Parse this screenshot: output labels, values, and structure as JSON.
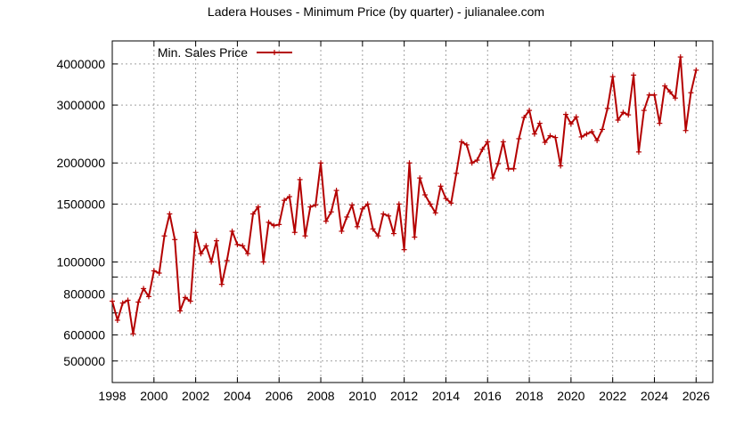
{
  "chart_data": {
    "type": "line",
    "title": "Ladera Houses - Minimum Price (by quarter) - julianalee.com",
    "xlabel": "",
    "ylabel": "",
    "y_scale": "log",
    "xlim": [
      1998,
      2026.8
    ],
    "ylim": [
      430000,
      4700000
    ],
    "grid": true,
    "legend_position": "top-left",
    "color": "#b40000",
    "x_ticks": [
      {
        "value": 1998,
        "label": "1998"
      },
      {
        "value": 2000,
        "label": "2000"
      },
      {
        "value": 2002,
        "label": "2002"
      },
      {
        "value": 2004,
        "label": "2004"
      },
      {
        "value": 2006,
        "label": "2006"
      },
      {
        "value": 2008,
        "label": "2008"
      },
      {
        "value": 2010,
        "label": "2010"
      },
      {
        "value": 2012,
        "label": "2012"
      },
      {
        "value": 2014,
        "label": "2014"
      },
      {
        "value": 2016,
        "label": "2016"
      },
      {
        "value": 2018,
        "label": "2018"
      },
      {
        "value": 2020,
        "label": "2020"
      },
      {
        "value": 2022,
        "label": "2022"
      },
      {
        "value": 2024,
        "label": "2024"
      },
      {
        "value": 2026,
        "label": "2026"
      }
    ],
    "y_ticks": [
      {
        "value": 500000,
        "label": "500000"
      },
      {
        "value": 600000,
        "label": "600000"
      },
      {
        "value": 700000,
        "label": ""
      },
      {
        "value": 800000,
        "label": "800000"
      },
      {
        "value": 900000,
        "label": ""
      },
      {
        "value": 1000000,
        "label": "1000000"
      },
      {
        "value": 1500000,
        "label": "1500000"
      },
      {
        "value": 2000000,
        "label": "2000000"
      },
      {
        "value": 3000000,
        "label": "3000000"
      },
      {
        "value": 4000000,
        "label": "4000000"
      }
    ],
    "series": [
      {
        "name": "Min. Sales Price",
        "points": [
          [
            1998.0,
            760000
          ],
          [
            1998.25,
            665000
          ],
          [
            1998.5,
            750000
          ],
          [
            1998.75,
            765000
          ],
          [
            1999.0,
            605000
          ],
          [
            1999.25,
            755000
          ],
          [
            1999.5,
            830000
          ],
          [
            1999.75,
            785000
          ],
          [
            2000.0,
            940000
          ],
          [
            2000.25,
            925000
          ],
          [
            2000.5,
            1200000
          ],
          [
            2000.75,
            1400000
          ],
          [
            2001.0,
            1170000
          ],
          [
            2001.25,
            710000
          ],
          [
            2001.5,
            780000
          ],
          [
            2001.75,
            760000
          ],
          [
            2002.0,
            1230000
          ],
          [
            2002.25,
            1060000
          ],
          [
            2002.5,
            1120000
          ],
          [
            2002.75,
            1000000
          ],
          [
            2003.0,
            1160000
          ],
          [
            2003.25,
            855000
          ],
          [
            2003.5,
            1010000
          ],
          [
            2003.75,
            1240000
          ],
          [
            2004.0,
            1130000
          ],
          [
            2004.25,
            1120000
          ],
          [
            2004.5,
            1060000
          ],
          [
            2004.75,
            1400000
          ],
          [
            2005.0,
            1470000
          ],
          [
            2005.25,
            1000000
          ],
          [
            2005.5,
            1320000
          ],
          [
            2005.75,
            1290000
          ],
          [
            2006.0,
            1300000
          ],
          [
            2006.25,
            1540000
          ],
          [
            2006.5,
            1580000
          ],
          [
            2006.75,
            1230000
          ],
          [
            2007.0,
            1780000
          ],
          [
            2007.25,
            1200000
          ],
          [
            2007.5,
            1470000
          ],
          [
            2007.75,
            1490000
          ],
          [
            2008.0,
            2000000
          ],
          [
            2008.25,
            1330000
          ],
          [
            2008.5,
            1420000
          ],
          [
            2008.75,
            1650000
          ],
          [
            2009.0,
            1240000
          ],
          [
            2009.25,
            1370000
          ],
          [
            2009.5,
            1490000
          ],
          [
            2009.75,
            1280000
          ],
          [
            2010.0,
            1450000
          ],
          [
            2010.25,
            1500000
          ],
          [
            2010.5,
            1260000
          ],
          [
            2010.75,
            1200000
          ],
          [
            2011.0,
            1400000
          ],
          [
            2011.25,
            1380000
          ],
          [
            2011.5,
            1220000
          ],
          [
            2011.75,
            1500000
          ],
          [
            2012.0,
            1090000
          ],
          [
            2012.25,
            2000000
          ],
          [
            2012.5,
            1190000
          ],
          [
            2012.75,
            1800000
          ],
          [
            2013.0,
            1600000
          ],
          [
            2013.25,
            1500000
          ],
          [
            2013.5,
            1410000
          ],
          [
            2013.75,
            1700000
          ],
          [
            2014.0,
            1560000
          ],
          [
            2014.25,
            1510000
          ],
          [
            2014.5,
            1860000
          ],
          [
            2014.75,
            2320000
          ],
          [
            2015.0,
            2270000
          ],
          [
            2015.25,
            2000000
          ],
          [
            2015.5,
            2040000
          ],
          [
            2015.75,
            2200000
          ],
          [
            2016.0,
            2320000
          ],
          [
            2016.25,
            1800000
          ],
          [
            2016.5,
            1990000
          ],
          [
            2016.75,
            2320000
          ],
          [
            2017.0,
            1920000
          ],
          [
            2017.25,
            1920000
          ],
          [
            2017.5,
            2370000
          ],
          [
            2017.75,
            2750000
          ],
          [
            2018.0,
            2890000
          ],
          [
            2018.25,
            2450000
          ],
          [
            2018.5,
            2640000
          ],
          [
            2018.75,
            2310000
          ],
          [
            2019.0,
            2420000
          ],
          [
            2019.25,
            2390000
          ],
          [
            2019.5,
            1960000
          ],
          [
            2019.75,
            2810000
          ],
          [
            2020.0,
            2630000
          ],
          [
            2020.25,
            2760000
          ],
          [
            2020.5,
            2400000
          ],
          [
            2020.75,
            2450000
          ],
          [
            2021.0,
            2490000
          ],
          [
            2021.25,
            2340000
          ],
          [
            2021.5,
            2530000
          ],
          [
            2021.75,
            2930000
          ],
          [
            2022.0,
            3660000
          ],
          [
            2022.25,
            2700000
          ],
          [
            2022.5,
            2850000
          ],
          [
            2022.75,
            2800000
          ],
          [
            2023.0,
            3700000
          ],
          [
            2023.25,
            2160000
          ],
          [
            2023.5,
            2890000
          ],
          [
            2023.75,
            3220000
          ],
          [
            2024.0,
            3220000
          ],
          [
            2024.25,
            2640000
          ],
          [
            2024.5,
            3430000
          ],
          [
            2024.75,
            3290000
          ],
          [
            2025.0,
            3150000
          ],
          [
            2025.25,
            4200000
          ],
          [
            2025.5,
            2510000
          ],
          [
            2025.75,
            3270000
          ],
          [
            2026.0,
            3830000
          ]
        ]
      }
    ]
  }
}
